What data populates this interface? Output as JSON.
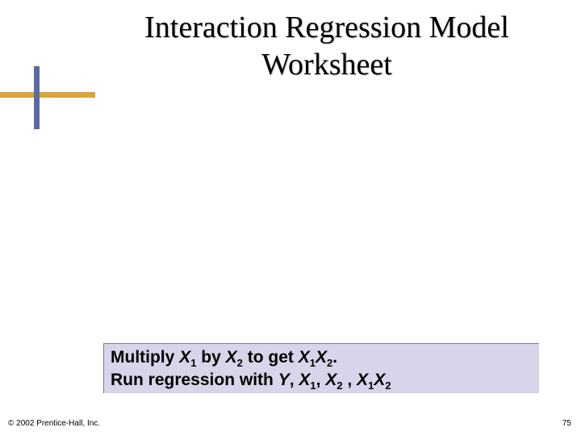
{
  "slide": {
    "title_line1": "Interaction Regression Model",
    "title_line2": "Worksheet",
    "title_color": "#000000",
    "title_fontsize": 38,
    "background_color": "#ffffff"
  },
  "accent": {
    "horizontal_color": "#d9a43b",
    "vertical_color": "#5b6aa0"
  },
  "content_box": {
    "background_color": "#d6d5e9",
    "text_color": "#000000",
    "fontsize": 21,
    "line1_prefix": "Multiply ",
    "line1_x1": "X",
    "line1_sub1": "1",
    "line1_by": " by ",
    "line1_x2": "X",
    "line1_sub2": "2",
    "line1_toget": " to get ",
    "line1_x1b": "X",
    "line1_sub1b": "1",
    "line1_x2b": "X",
    "line1_sub2b": "2",
    "line1_period": ".",
    "line2_prefix": "Run regression with ",
    "line2_y": "Y",
    "line2_c1": ", ",
    "line2_x1": "X",
    "line2_sub1": "1",
    "line2_c2": ", ",
    "line2_x2": "X",
    "line2_sub2": "2",
    "line2_c3": " , ",
    "line2_x1b": "X",
    "line2_sub1b": "1",
    "line2_x2b": "X",
    "line2_sub2b": "2"
  },
  "footer": {
    "copyright": "© 2002 Prentice-Hall, Inc.",
    "page_number": "75"
  }
}
